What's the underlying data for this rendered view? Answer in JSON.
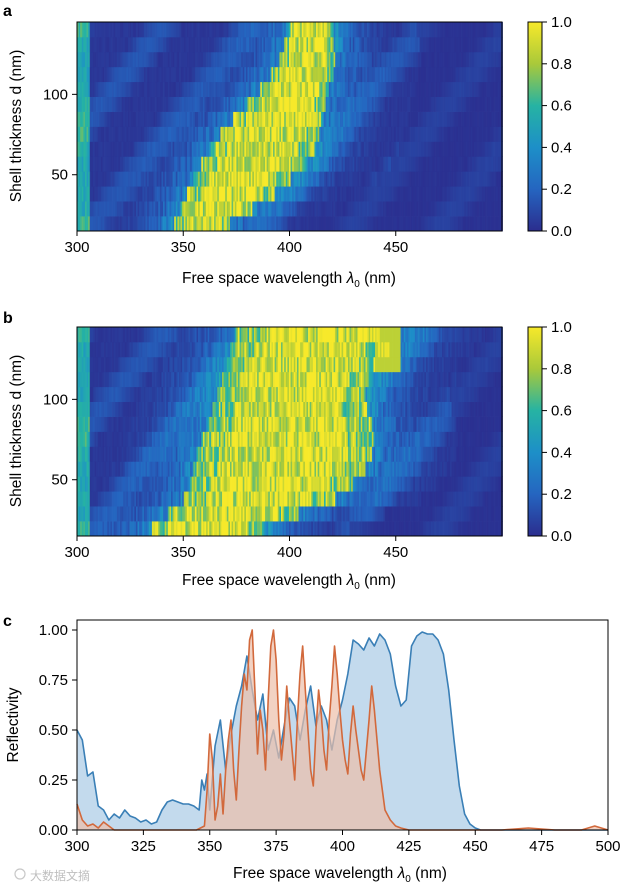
{
  "chart_data": [
    {
      "panel": "a",
      "type": "heatmap",
      "xlabel": "Free space wavelength",
      "xlabel_symbol": "λ",
      "xlabel_subscript": "0",
      "xlabel_unit": "(nm)",
      "ylabel": "Shell thickness d (nm)",
      "xlim": [
        300,
        500
      ],
      "ylim": [
        15,
        145
      ],
      "xticks": [
        "300",
        "350",
        "400",
        "450"
      ],
      "yticks": [
        "50",
        "100"
      ],
      "colorbar": {
        "range": [
          0.0,
          1.0
        ],
        "ticks": [
          "0.0",
          "0.2",
          "0.4",
          "0.6",
          "0.8",
          "1.0"
        ],
        "colormap": "viridis-like"
      },
      "band_description": "High reflectance band shifts to longer wavelengths as shell thickness increases",
      "band_ridge": [
        {
          "d": 20,
          "lo": 346,
          "hi": 372
        },
        {
          "d": 40,
          "lo": 352,
          "hi": 395
        },
        {
          "d": 60,
          "lo": 360,
          "hi": 410
        },
        {
          "d": 80,
          "lo": 370,
          "hi": 415
        },
        {
          "d": 100,
          "lo": 385,
          "hi": 418
        },
        {
          "d": 120,
          "lo": 395,
          "hi": 422
        },
        {
          "d": 140,
          "lo": 400,
          "hi": 420
        }
      ]
    },
    {
      "panel": "b",
      "type": "heatmap",
      "xlabel": "Free space wavelength",
      "xlabel_symbol": "λ",
      "xlabel_subscript": "0",
      "xlabel_unit": "(nm)",
      "ylabel": "Shell thickness d (nm)",
      "xlim": [
        300,
        500
      ],
      "ylim": [
        15,
        145
      ],
      "xticks": [
        "300",
        "350",
        "400",
        "450"
      ],
      "yticks": [
        "50",
        "100"
      ],
      "colorbar": {
        "range": [
          0.0,
          1.0
        ],
        "ticks": [
          "0.0",
          "0.2",
          "0.4",
          "0.6",
          "0.8",
          "1.0"
        ],
        "colormap": "viridis-like"
      },
      "band_description": "Broader high reflectance band from about 350 nm extending to about 450 nm at larger shell thickness",
      "band_ridge": [
        {
          "d": 20,
          "lo": 335,
          "hi": 388
        },
        {
          "d": 40,
          "lo": 352,
          "hi": 425
        },
        {
          "d": 60,
          "lo": 355,
          "hi": 438
        },
        {
          "d": 80,
          "lo": 360,
          "hi": 440
        },
        {
          "d": 100,
          "lo": 365,
          "hi": 435
        },
        {
          "d": 120,
          "lo": 370,
          "hi": 440
        },
        {
          "d": 140,
          "lo": 375,
          "hi": 452
        }
      ]
    },
    {
      "panel": "c",
      "type": "area",
      "xlabel": "Free space wavelength",
      "xlabel_symbol": "λ",
      "xlabel_subscript": "0",
      "xlabel_unit": "(nm)",
      "ylabel": "Reflectivity",
      "xlim": [
        300,
        500
      ],
      "ylim": [
        0,
        1.05
      ],
      "xticks": [
        "300",
        "325",
        "350",
        "375",
        "400",
        "425",
        "450",
        "475",
        "500"
      ],
      "yticks": [
        "0.00",
        "0.25",
        "0.50",
        "0.75",
        "1.00"
      ],
      "series": [
        {
          "name": "blue",
          "color": "#3a7fb6",
          "fill": "#b9d3ea",
          "x": [
            300,
            302,
            304,
            306,
            308,
            310,
            312,
            314,
            316,
            318,
            320,
            322,
            324,
            326,
            328,
            330,
            332,
            334,
            336,
            338,
            340,
            342,
            344,
            346,
            347,
            348,
            349,
            350,
            352,
            354,
            356,
            358,
            360,
            362,
            364,
            366,
            368,
            370,
            372,
            374,
            376,
            378,
            380,
            382,
            384,
            386,
            388,
            390,
            392,
            394,
            396,
            398,
            400,
            402,
            404,
            406,
            408,
            410,
            412,
            414,
            416,
            418,
            420,
            422,
            424,
            426,
            428,
            430,
            432,
            434,
            436,
            438,
            440,
            442,
            444,
            446,
            448,
            450,
            452,
            455,
            460,
            470,
            480,
            490,
            500
          ],
          "y": [
            0.5,
            0.45,
            0.27,
            0.29,
            0.12,
            0.1,
            0.05,
            0.08,
            0.06,
            0.1,
            0.07,
            0.06,
            0.04,
            0.05,
            0.03,
            0.04,
            0.1,
            0.14,
            0.15,
            0.14,
            0.13,
            0.13,
            0.12,
            0.1,
            0.25,
            0.2,
            0.28,
            0.1,
            0.42,
            0.55,
            0.3,
            0.48,
            0.62,
            0.72,
            0.87,
            0.7,
            0.55,
            0.68,
            0.4,
            0.5,
            0.36,
            0.52,
            0.66,
            0.62,
            0.45,
            0.6,
            0.72,
            0.52,
            0.62,
            0.55,
            0.4,
            0.55,
            0.65,
            0.78,
            0.95,
            0.93,
            0.9,
            0.96,
            0.92,
            0.98,
            0.95,
            0.88,
            0.72,
            0.62,
            0.65,
            0.92,
            0.97,
            0.99,
            0.98,
            0.98,
            0.95,
            0.88,
            0.7,
            0.45,
            0.22,
            0.08,
            0.03,
            0.01,
            0.0,
            0.0,
            0.0,
            0.0,
            0.0,
            0.0,
            0.0
          ]
        },
        {
          "name": "orange",
          "color": "#d2693c",
          "fill": "#ecbfa9",
          "x": [
            300,
            302,
            304,
            306,
            308,
            310,
            312,
            314,
            316,
            318,
            320,
            330,
            340,
            345,
            348,
            349,
            350,
            351,
            352,
            353,
            354,
            355,
            356,
            357,
            358,
            359,
            360,
            361,
            362,
            363,
            364,
            365,
            366,
            367,
            368,
            369,
            370,
            371,
            372,
            373,
            374,
            375,
            376,
            377,
            378,
            379,
            380,
            381,
            382,
            383,
            384,
            385,
            386,
            387,
            388,
            389,
            390,
            391,
            392,
            393,
            394,
            395,
            396,
            397,
            398,
            399,
            400,
            401,
            402,
            403,
            404,
            405,
            406,
            407,
            408,
            409,
            410,
            411,
            412,
            413,
            414,
            415,
            416,
            418,
            420,
            422,
            425,
            430,
            440,
            460,
            470,
            480,
            490,
            495,
            500
          ],
          "y": [
            0.13,
            0.05,
            0.02,
            0.03,
            0.01,
            0.04,
            0.02,
            0.0,
            0.0,
            0.0,
            0.0,
            0.0,
            0.0,
            0.0,
            0.02,
            0.2,
            0.48,
            0.35,
            0.05,
            0.12,
            0.28,
            0.08,
            0.3,
            0.45,
            0.55,
            0.3,
            0.15,
            0.4,
            0.62,
            0.78,
            0.7,
            0.95,
            1.0,
            0.7,
            0.38,
            0.6,
            0.5,
            0.3,
            0.65,
            0.92,
            1.0,
            0.85,
            0.55,
            0.35,
            0.48,
            0.72,
            0.55,
            0.4,
            0.25,
            0.55,
            0.78,
            0.92,
            0.7,
            0.5,
            0.3,
            0.22,
            0.5,
            0.7,
            0.58,
            0.4,
            0.3,
            0.55,
            0.72,
            0.92,
            0.78,
            0.6,
            0.45,
            0.35,
            0.28,
            0.48,
            0.62,
            0.5,
            0.4,
            0.3,
            0.25,
            0.4,
            0.55,
            0.72,
            0.6,
            0.45,
            0.3,
            0.2,
            0.1,
            0.05,
            0.02,
            0.01,
            0.0,
            0.0,
            0.0,
            0.0,
            0.01,
            0.0,
            0.0,
            0.02,
            0.0
          ]
        }
      ]
    }
  ],
  "panel_labels": [
    "a",
    "b",
    "c"
  ],
  "watermark": "大数据文摘"
}
